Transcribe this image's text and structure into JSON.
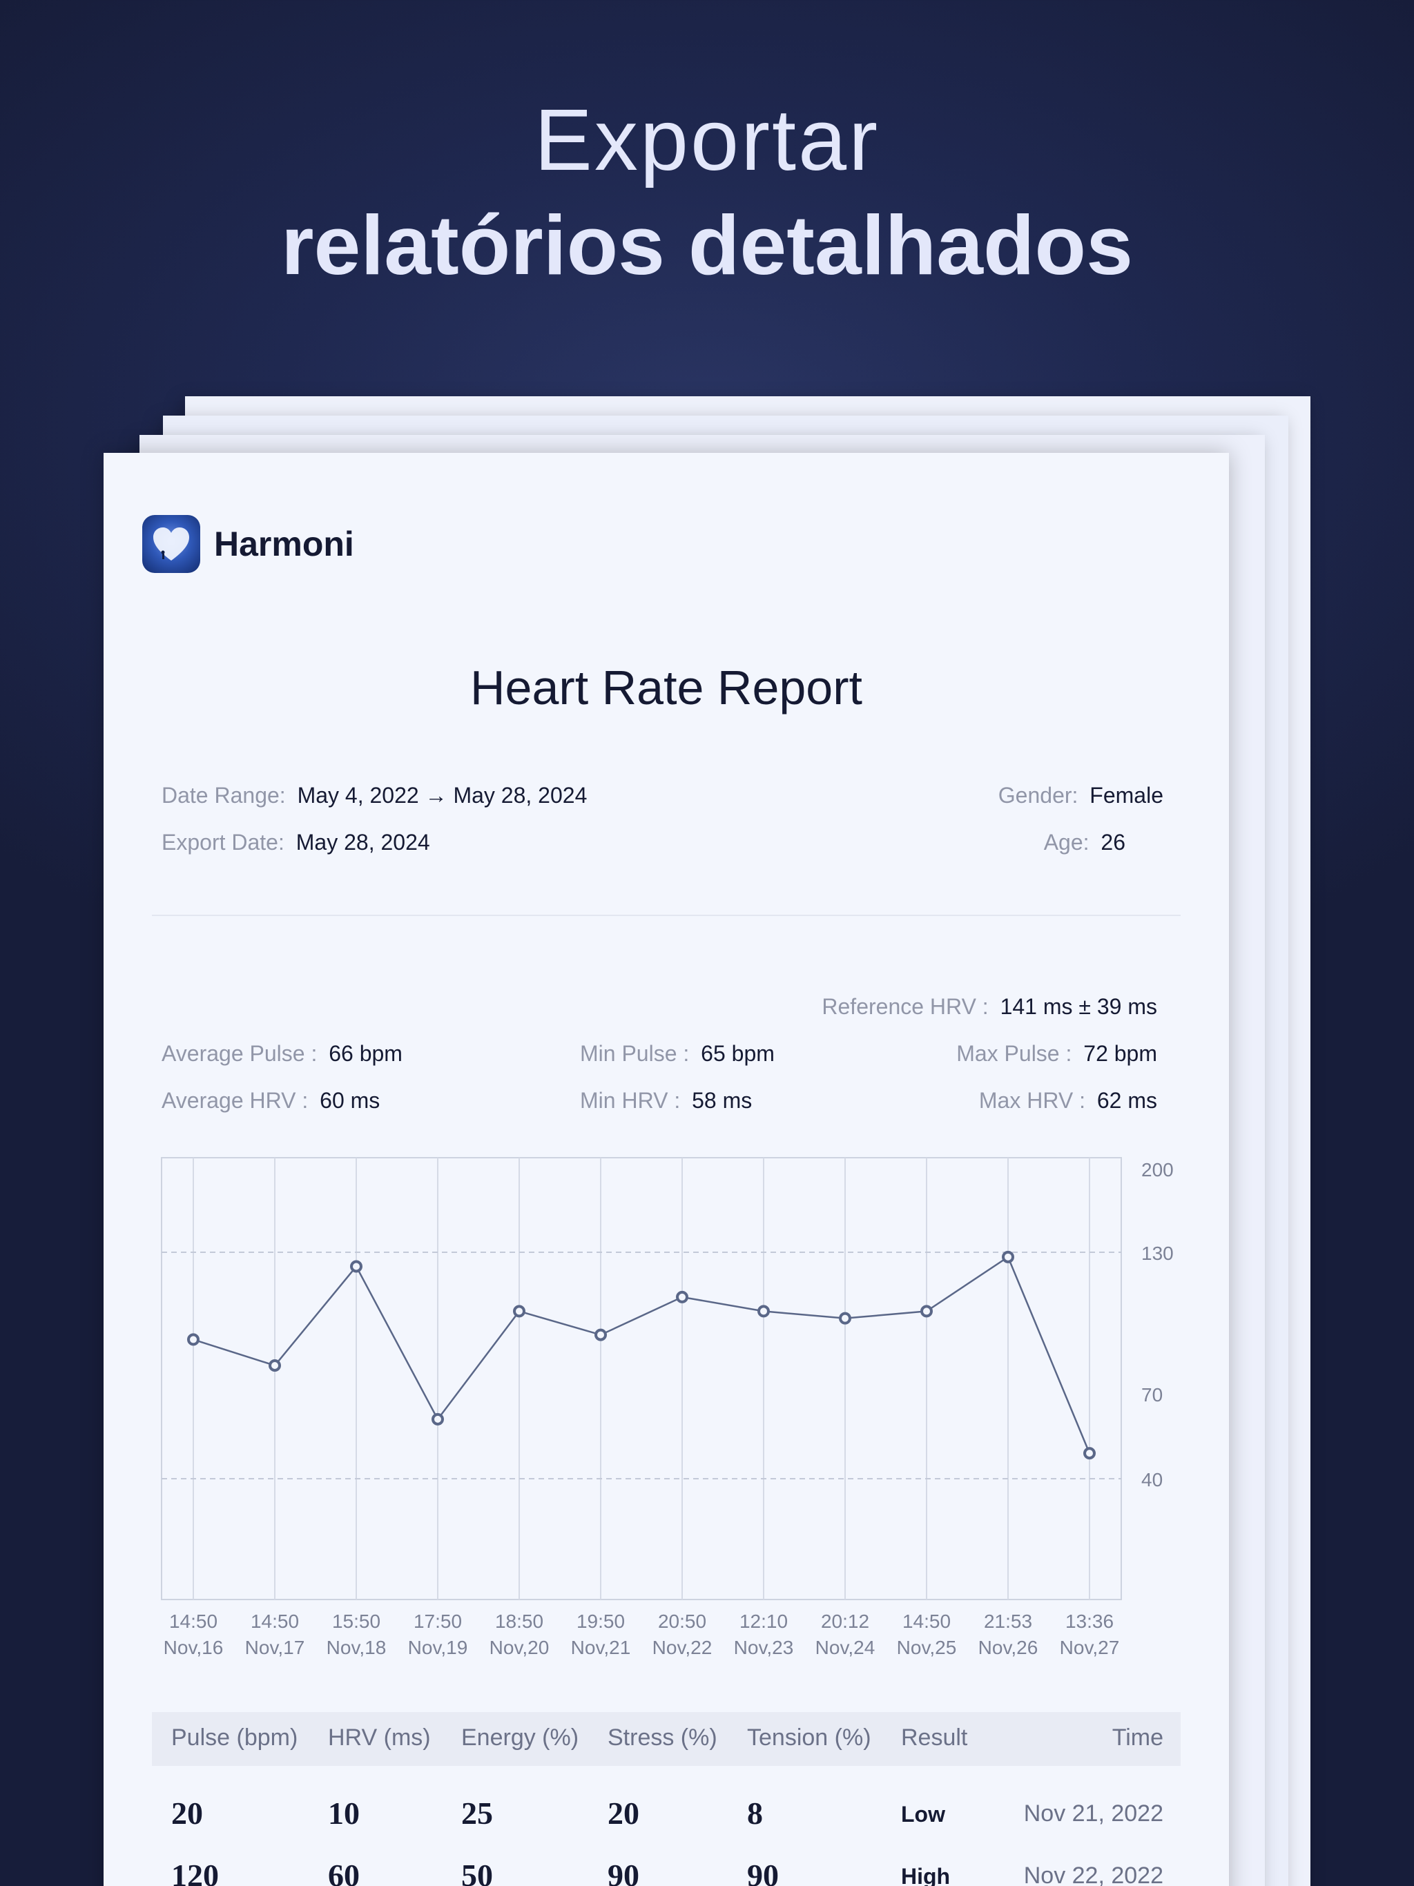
{
  "hero": {
    "line1": "Exportar",
    "line2": "relatórios detalhados"
  },
  "brand": {
    "name": "Harmoni",
    "icon": "heart-moon-icon"
  },
  "report": {
    "title": "Heart Rate Report",
    "date_range_label": "Date Range:",
    "date_range_value": "May 4, 2022 → May 28, 2024",
    "export_date_label": "Export Date:",
    "export_date_value": "May 28, 2024",
    "gender_label": "Gender:",
    "gender_value": "Female",
    "age_label": "Age:",
    "age_value": "26"
  },
  "stats": {
    "reference_hrv_label": "Reference HRV  :",
    "reference_hrv_value": "141 ms ± 39 ms",
    "avg_pulse_label": "Average Pulse :",
    "avg_pulse_value": "66 bpm",
    "min_pulse_label": "Min Pulse :",
    "min_pulse_value": "65 bpm",
    "max_pulse_label": "Max Pulse :",
    "max_pulse_value": "72 bpm",
    "avg_hrv_label": "Average HRV  :",
    "avg_hrv_value": "60 ms",
    "min_hrv_label": "Min HRV :",
    "min_hrv_value": "58 ms",
    "max_hrv_label": "Max HRV :",
    "max_hrv_value": "62 ms"
  },
  "chart_data": {
    "type": "line",
    "x": [
      "14:50 Nov,16",
      "14:50 Nov,17",
      "15:50 Nov,18",
      "17:50 Nov,19",
      "18:50 Nov,20",
      "19:50 Nov,21",
      "20:50 Nov,22",
      "12:10 Nov,23",
      "20:12 Nov,24",
      "14:50 Nov,25",
      "21:53 Nov,26",
      "13:36 Nov,27"
    ],
    "x_time": [
      "14:50",
      "14:50",
      "15:50",
      "17:50",
      "18:50",
      "19:50",
      "20:50",
      "12:10",
      "20:12",
      "14:50",
      "21:53",
      "13:36"
    ],
    "x_date": [
      "Nov,16",
      "Nov,17",
      "Nov,18",
      "Nov,19",
      "Nov,20",
      "Nov,21",
      "Nov,22",
      "Nov,23",
      "Nov,24",
      "Nov,25",
      "Nov,26",
      "Nov,27"
    ],
    "values": [
      93,
      82,
      124,
      61,
      105,
      95,
      111,
      105,
      102,
      105,
      128,
      49
    ],
    "y_ticks": [
      "200",
      "130",
      "70",
      "40"
    ],
    "y_tick_values": [
      200,
      130,
      70,
      40
    ],
    "reference_lines": [
      130,
      40
    ],
    "grid": true,
    "line_color": "#5a6788"
  },
  "table": {
    "headers": [
      "Pulse (bpm)",
      "HRV (ms)",
      "Energy (%)",
      "Stress (%)",
      "Tension (%)",
      "Result",
      "Time"
    ],
    "rows": [
      {
        "pulse": "20",
        "hrv": "10",
        "energy": "25",
        "stress": "20",
        "tension": "8",
        "result": "Low",
        "time": "Nov 21, 2022"
      },
      {
        "pulse": "120",
        "hrv": "60",
        "energy": "50",
        "stress": "90",
        "tension": "90",
        "result": "High",
        "time": "Nov 22, 2022"
      }
    ]
  }
}
